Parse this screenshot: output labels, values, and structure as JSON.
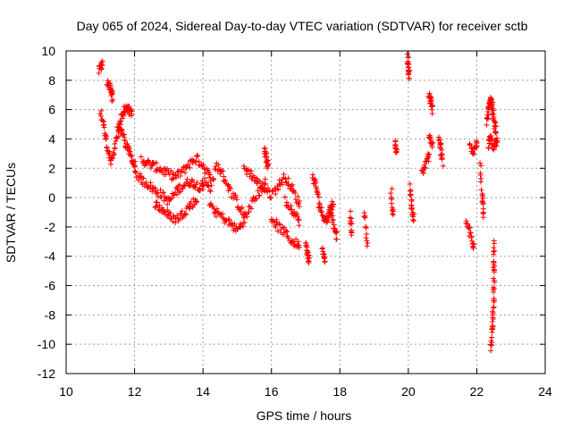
{
  "chart_data": {
    "type": "scatter",
    "title": "Day 065 of 2024, Sidereal Day-to-day VTEC variation (SDTVAR) for receiver sctb",
    "xlabel": "GPS time / hours",
    "ylabel": "SDTVAR / TECUs",
    "xlim": [
      10,
      24
    ],
    "ylim": [
      -12,
      10
    ],
    "xticks": [
      10,
      12,
      14,
      16,
      18,
      20,
      22,
      24
    ],
    "yticks": [
      -12,
      -10,
      -8,
      -6,
      -4,
      -2,
      0,
      2,
      4,
      6,
      8,
      10
    ],
    "grid": true,
    "marker": "+",
    "colors": {
      "series": "#ff0000",
      "grid": "#a0a0a0",
      "axis": "#000000"
    },
    "series": [
      {
        "name": "SDTVAR",
        "segments": [
          {
            "x": [
              10.95,
              11.05
            ],
            "y": [
              8.6,
              9.1
            ]
          },
          {
            "x": [
              11.0,
              11.1,
              11.2,
              11.3,
              11.4,
              11.5,
              11.6,
              11.7,
              11.8,
              11.9,
              12.0
            ],
            "y": [
              5.8,
              4.9,
              3.6,
              2.4,
              3.0,
              4.2,
              4.8,
              4.0,
              3.4,
              2.8,
              2.2
            ]
          },
          {
            "x": [
              11.2,
              11.3,
              11.35
            ],
            "y": [
              7.8,
              7.4,
              6.8
            ]
          },
          {
            "x": [
              11.5,
              11.6,
              11.7,
              11.8,
              11.9
            ],
            "y": [
              4.6,
              5.4,
              5.9,
              6.1,
              5.8
            ]
          },
          {
            "x": [
              12.0,
              12.2,
              12.4,
              12.6,
              12.8,
              13.0,
              13.2,
              13.4,
              13.6,
              13.8,
              14.0
            ],
            "y": [
              1.8,
              1.2,
              0.9,
              0.5,
              0.2,
              -0.3,
              0.4,
              0.8,
              1.1,
              0.9,
              0.6
            ]
          },
          {
            "x": [
              12.2,
              12.4,
              12.6,
              12.8,
              13.0,
              13.2,
              13.4,
              13.6,
              13.8,
              14.0,
              14.2
            ],
            "y": [
              2.6,
              2.3,
              2.1,
              1.9,
              1.6,
              1.4,
              1.8,
              2.3,
              2.7,
              2.2,
              1.4
            ]
          },
          {
            "x": [
              12.6,
              12.8,
              13.0,
              13.2,
              13.4,
              13.6,
              13.8
            ],
            "y": [
              -0.4,
              -0.8,
              -1.2,
              -1.5,
              -1.1,
              -0.6,
              -0.2
            ]
          },
          {
            "x": [
              14.0,
              14.2,
              14.4,
              14.6,
              14.8,
              15.0,
              15.2
            ],
            "y": [
              1.2,
              0.6,
              2.2,
              1.5,
              0.5,
              -0.4,
              -1.2
            ]
          },
          {
            "x": [
              14.2,
              14.4,
              14.6,
              14.8,
              15.0,
              15.2,
              15.4,
              15.6,
              15.8
            ],
            "y": [
              -0.6,
              -1.0,
              -1.4,
              -1.8,
              -2.2,
              -1.6,
              -0.6,
              0.2,
              1.0
            ]
          },
          {
            "x": [
              15.2,
              15.4,
              15.6,
              15.8,
              16.0,
              16.2,
              16.4,
              16.6,
              16.8
            ],
            "y": [
              2.0,
              1.6,
              1.0,
              0.6,
              0.2,
              0.8,
              1.4,
              0.6,
              -0.4
            ]
          },
          {
            "x": [
              15.8,
              15.85,
              15.9
            ],
            "y": [
              3.4,
              2.8,
              2.2
            ]
          },
          {
            "x": [
              16.0,
              16.2,
              16.4,
              16.6,
              16.8
            ],
            "y": [
              -1.4,
              -2.0,
              -2.4,
              -3.0,
              -3.2
            ]
          },
          {
            "x": [
              16.4,
              16.6,
              16.8
            ],
            "y": [
              -0.2,
              -0.8,
              -1.6
            ]
          },
          {
            "x": [
              17.0,
              17.05,
              17.1
            ],
            "y": [
              -3.2,
              -3.8,
              -4.3
            ]
          },
          {
            "x": [
              17.2,
              17.3,
              17.4,
              17.5,
              17.6,
              17.7,
              17.8
            ],
            "y": [
              1.4,
              0.8,
              -0.4,
              -1.2,
              -1.6,
              -1.0,
              -0.4
            ]
          },
          {
            "x": [
              17.5,
              17.55
            ],
            "y": [
              -3.6,
              -4.1
            ]
          },
          {
            "x": [
              17.7,
              17.8,
              17.9
            ],
            "y": [
              -0.6,
              -1.8,
              -2.6
            ]
          },
          {
            "x": [
              18.3,
              18.35
            ],
            "y": [
              -1.2,
              -2.4
            ]
          },
          {
            "x": [
              18.7,
              18.8
            ],
            "y": [
              -0.8,
              -3.0
            ]
          },
          {
            "x": [
              19.5,
              19.55
            ],
            "y": [
              0.6,
              -1.2
            ]
          },
          {
            "x": [
              19.6,
              19.65
            ],
            "y": [
              3.8,
              3.2
            ]
          },
          {
            "x": [
              19.98,
              20.0,
              20.02
            ],
            "y": [
              9.6,
              8.9,
              8.4
            ]
          },
          {
            "x": [
              20.05,
              20.1,
              20.15
            ],
            "y": [
              0.8,
              -0.4,
              -1.4
            ]
          },
          {
            "x": [
              20.4,
              20.5,
              20.6
            ],
            "y": [
              1.6,
              2.2,
              2.9
            ]
          },
          {
            "x": [
              20.6,
              20.65,
              20.7
            ],
            "y": [
              7.0,
              6.6,
              6.0
            ]
          },
          {
            "x": [
              20.6,
              20.7
            ],
            "y": [
              4.4,
              3.6
            ]
          },
          {
            "x": [
              20.9,
              20.95,
              21.0
            ],
            "y": [
              4.0,
              3.4,
              2.4
            ]
          },
          {
            "x": [
              21.7,
              21.8,
              21.9
            ],
            "y": [
              -1.6,
              -2.4,
              -3.4
            ]
          },
          {
            "x": [
              21.8,
              21.9,
              22.0
            ],
            "y": [
              3.6,
              3.2,
              3.8
            ]
          },
          {
            "x": [
              22.1,
              22.15,
              22.2
            ],
            "y": [
              2.2,
              0.2,
              -1.2
            ]
          },
          {
            "x": [
              22.3,
              22.35,
              22.4,
              22.45,
              22.5,
              22.55
            ],
            "y": [
              5.2,
              6.0,
              6.6,
              6.3,
              5.4,
              4.6
            ]
          },
          {
            "x": [
              22.35,
              22.4,
              22.5,
              22.6
            ],
            "y": [
              3.6,
              4.0,
              3.4,
              3.8
            ]
          },
          {
            "x": [
              22.5,
              22.5,
              22.5,
              22.48,
              22.45,
              22.42
            ],
            "y": [
              -3.0,
              -4.6,
              -6.0,
              -7.8,
              -9.0,
              -10.2
            ]
          }
        ]
      }
    ]
  }
}
